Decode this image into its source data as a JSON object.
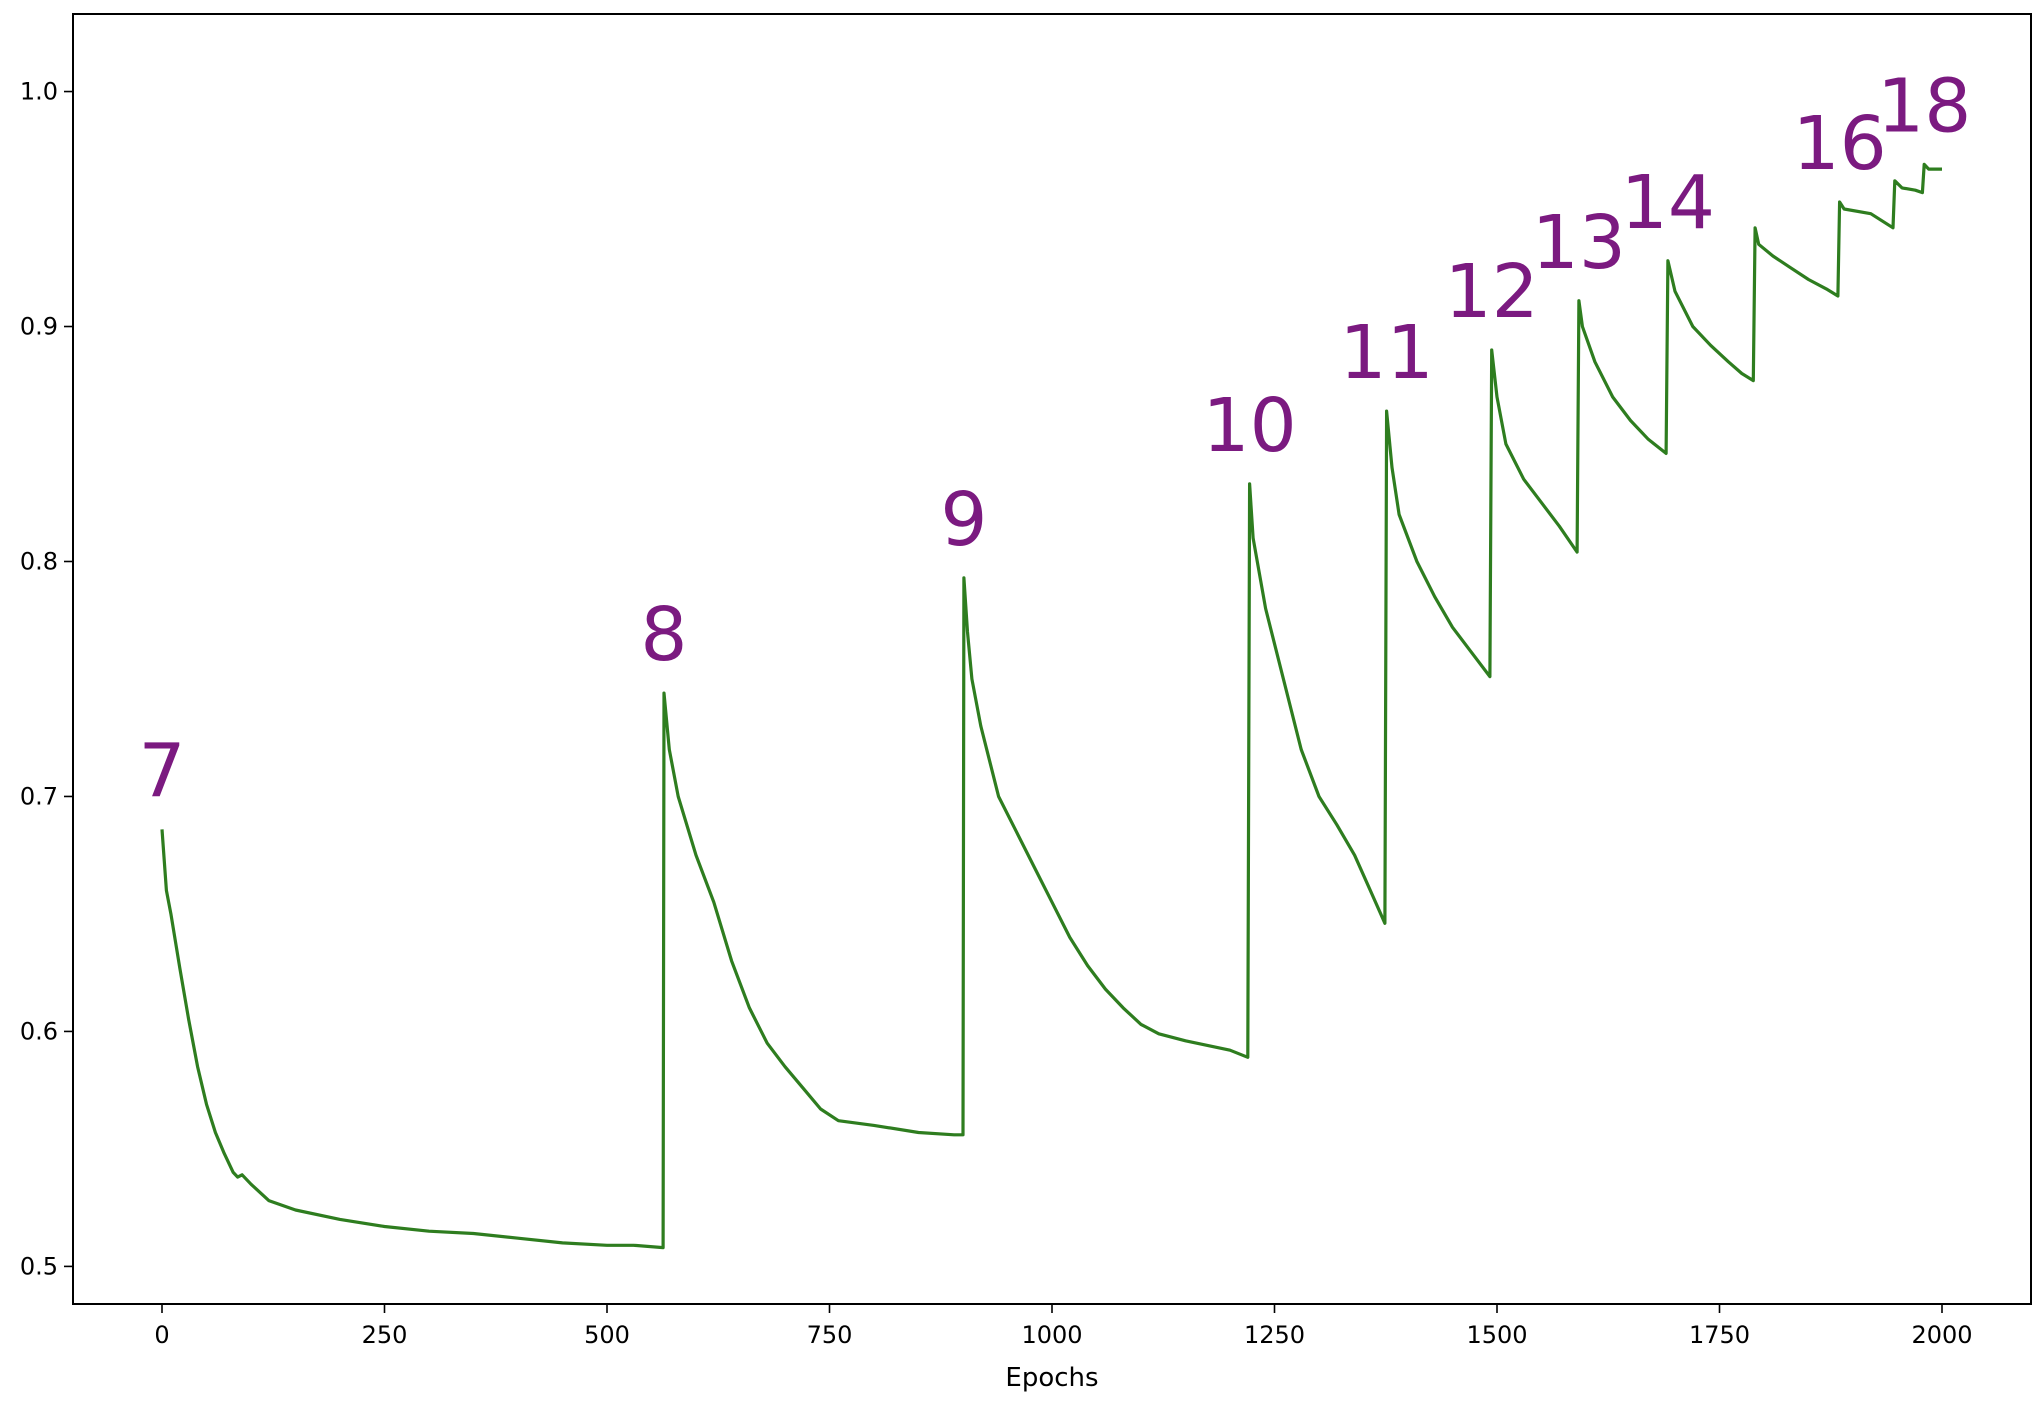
{
  "chart_data": {
    "type": "line",
    "title": "",
    "xlabel": "Epochs",
    "ylabel": "",
    "xlim": [
      -100,
      2100
    ],
    "ylim": [
      0.484,
      1.033
    ],
    "x_ticks": [
      0,
      250,
      500,
      750,
      1000,
      1250,
      1500,
      1750,
      2000
    ],
    "y_ticks": [
      0.5,
      0.6,
      0.7,
      0.8,
      0.9,
      1.0
    ],
    "grid": false,
    "line_color": "#2e7d1f",
    "annotation_color": "#7b1a80",
    "series": [
      {
        "values": [
          [
            0,
            0.686
          ],
          [
            5,
            0.66
          ],
          [
            10,
            0.65
          ],
          [
            20,
            0.627
          ],
          [
            30,
            0.605
          ],
          [
            40,
            0.585
          ],
          [
            50,
            0.569
          ],
          [
            60,
            0.557
          ],
          [
            70,
            0.548
          ],
          [
            80,
            0.54
          ],
          [
            85,
            0.538
          ],
          [
            90,
            0.539
          ],
          [
            100,
            0.535
          ],
          [
            120,
            0.528
          ],
          [
            150,
            0.524
          ],
          [
            200,
            0.52
          ],
          [
            250,
            0.517
          ],
          [
            300,
            0.515
          ],
          [
            350,
            0.514
          ],
          [
            400,
            0.512
          ],
          [
            450,
            0.51
          ],
          [
            500,
            0.509
          ],
          [
            530,
            0.509
          ],
          [
            563,
            0.508
          ],
          [
            564,
            0.744
          ],
          [
            570,
            0.72
          ],
          [
            580,
            0.7
          ],
          [
            600,
            0.675
          ],
          [
            620,
            0.655
          ],
          [
            640,
            0.63
          ],
          [
            660,
            0.61
          ],
          [
            680,
            0.595
          ],
          [
            700,
            0.585
          ],
          [
            720,
            0.576
          ],
          [
            740,
            0.567
          ],
          [
            760,
            0.562
          ],
          [
            800,
            0.56
          ],
          [
            850,
            0.557
          ],
          [
            890,
            0.556
          ],
          [
            900,
            0.556
          ],
          [
            901,
            0.793
          ],
          [
            905,
            0.77
          ],
          [
            910,
            0.75
          ],
          [
            920,
            0.73
          ],
          [
            940,
            0.7
          ],
          [
            960,
            0.685
          ],
          [
            980,
            0.67
          ],
          [
            1000,
            0.655
          ],
          [
            1020,
            0.64
          ],
          [
            1040,
            0.628
          ],
          [
            1060,
            0.618
          ],
          [
            1080,
            0.61
          ],
          [
            1100,
            0.603
          ],
          [
            1120,
            0.599
          ],
          [
            1150,
            0.596
          ],
          [
            1200,
            0.592
          ],
          [
            1220,
            0.589
          ],
          [
            1222,
            0.833
          ],
          [
            1226,
            0.81
          ],
          [
            1240,
            0.78
          ],
          [
            1260,
            0.75
          ],
          [
            1280,
            0.72
          ],
          [
            1300,
            0.7
          ],
          [
            1320,
            0.688
          ],
          [
            1340,
            0.675
          ],
          [
            1360,
            0.658
          ],
          [
            1374,
            0.646
          ],
          [
            1376,
            0.864
          ],
          [
            1382,
            0.84
          ],
          [
            1390,
            0.82
          ],
          [
            1410,
            0.8
          ],
          [
            1430,
            0.785
          ],
          [
            1450,
            0.772
          ],
          [
            1470,
            0.762
          ],
          [
            1492,
            0.751
          ],
          [
            1494,
            0.89
          ],
          [
            1500,
            0.87
          ],
          [
            1510,
            0.85
          ],
          [
            1530,
            0.835
          ],
          [
            1550,
            0.825
          ],
          [
            1570,
            0.815
          ],
          [
            1590,
            0.804
          ],
          [
            1592,
            0.911
          ],
          [
            1596,
            0.9
          ],
          [
            1610,
            0.885
          ],
          [
            1630,
            0.87
          ],
          [
            1650,
            0.86
          ],
          [
            1670,
            0.852
          ],
          [
            1690,
            0.846
          ],
          [
            1692,
            0.928
          ],
          [
            1700,
            0.915
          ],
          [
            1720,
            0.9
          ],
          [
            1740,
            0.892
          ],
          [
            1760,
            0.885
          ],
          [
            1775,
            0.88
          ],
          [
            1788,
            0.877
          ],
          [
            1790,
            0.942
          ],
          [
            1794,
            0.935
          ],
          [
            1810,
            0.93
          ],
          [
            1830,
            0.925
          ],
          [
            1850,
            0.92
          ],
          [
            1870,
            0.916
          ],
          [
            1883,
            0.913
          ],
          [
            1885,
            0.953
          ],
          [
            1890,
            0.95
          ],
          [
            1920,
            0.948
          ],
          [
            1945,
            0.942
          ],
          [
            1947,
            0.962
          ],
          [
            1955,
            0.959
          ],
          [
            1970,
            0.958
          ],
          [
            1978,
            0.957
          ],
          [
            1980,
            0.969
          ],
          [
            1985,
            0.967
          ],
          [
            2000,
            0.967
          ]
        ]
      }
    ],
    "annotations": [
      {
        "text": "7",
        "x": 0,
        "y": 0.7
      },
      {
        "text": "8",
        "x": 564,
        "y": 0.758
      },
      {
        "text": "9",
        "x": 901,
        "y": 0.807
      },
      {
        "text": "10",
        "x": 1222,
        "y": 0.847
      },
      {
        "text": "11",
        "x": 1376,
        "y": 0.878
      },
      {
        "text": "12",
        "x": 1494,
        "y": 0.904
      },
      {
        "text": "13",
        "x": 1592,
        "y": 0.925
      },
      {
        "text": "14",
        "x": 1692,
        "y": 0.942
      },
      {
        "text": "16",
        "x": 1885,
        "y": 0.967
      },
      {
        "text": "18",
        "x": 1980,
        "y": 0.983
      }
    ]
  }
}
